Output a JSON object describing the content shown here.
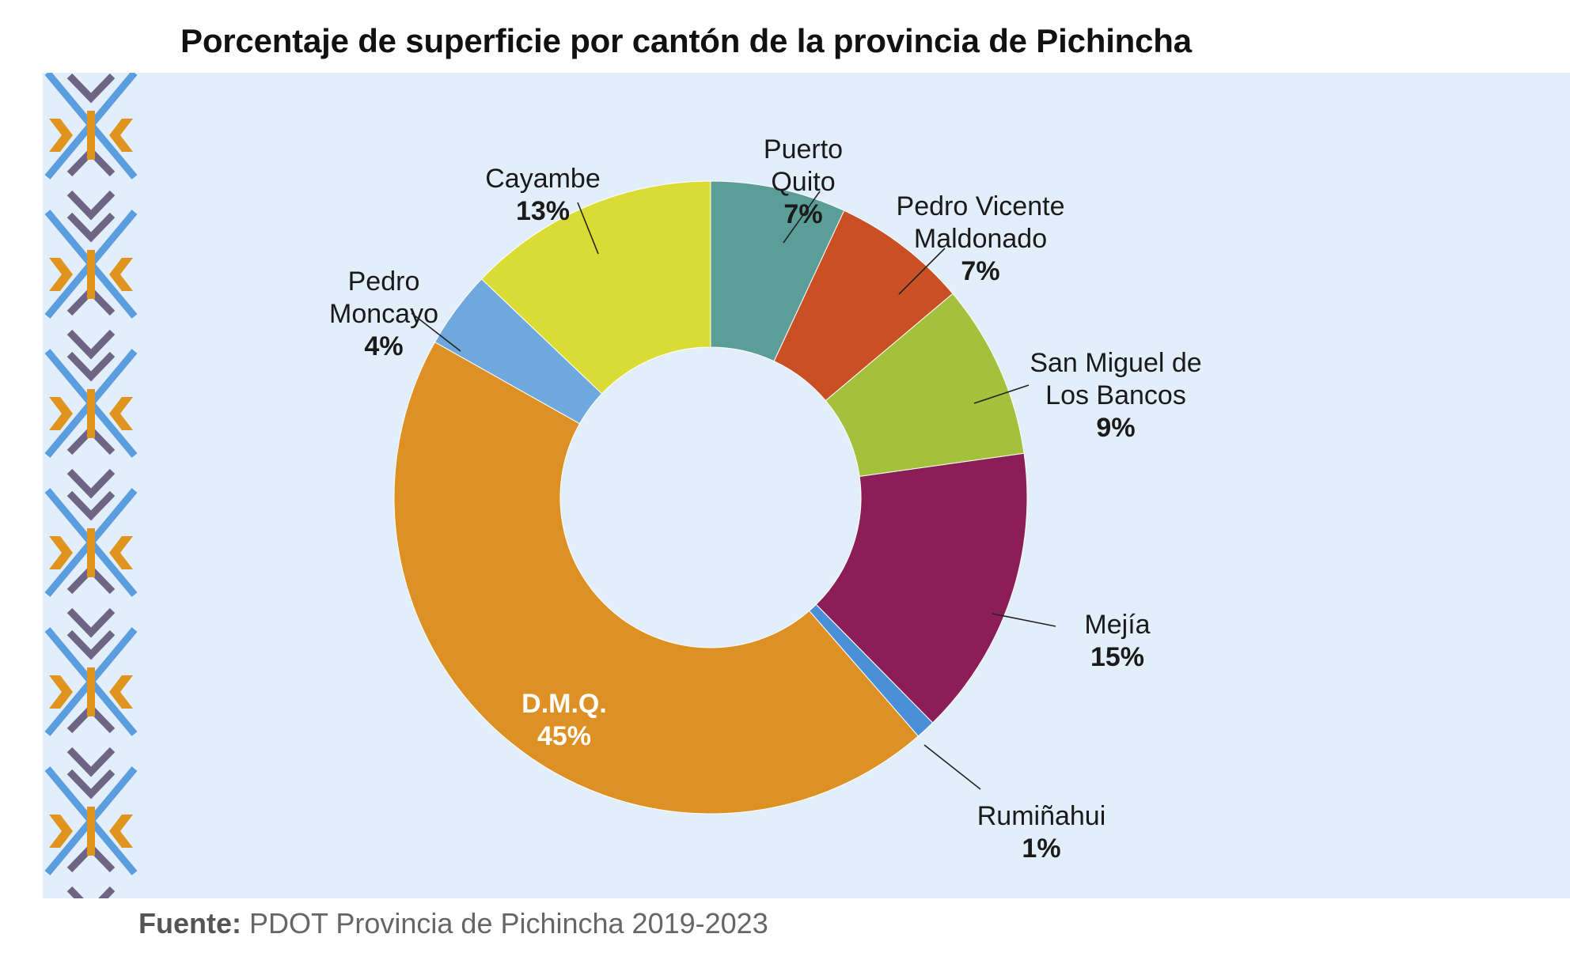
{
  "chart_data": {
    "type": "pie",
    "donut": true,
    "title": "Porcentaje de superficie por cantón de la provincia de Pichincha",
    "slices": [
      {
        "label": [
          "Puerto",
          "Quito"
        ],
        "value": 7,
        "value_label": "7%",
        "color": "#5a9e97"
      },
      {
        "label": [
          "Pedro Vicente",
          "Maldonado"
        ],
        "value": 7,
        "value_label": "7%",
        "color": "#c94f24"
      },
      {
        "label": [
          "San Miguel de",
          "Los Bancos"
        ],
        "value": 9,
        "value_label": "9%",
        "color": "#a3c13a"
      },
      {
        "label": [
          "Mejía"
        ],
        "value": 15,
        "value_label": "15%",
        "color": "#8b1e57"
      },
      {
        "label": [
          "Rumiñahui"
        ],
        "value": 1,
        "value_label": "1%",
        "color": "#4a90d9"
      },
      {
        "label": [
          "D.M.Q."
        ],
        "value": 45,
        "value_label": "45%",
        "color": "#dd9023"
      },
      {
        "label": [
          "Pedro",
          "Moncayo"
        ],
        "value": 4,
        "value_label": "4%",
        "color": "#6fa8dc"
      },
      {
        "label": [
          "Cayambe"
        ],
        "value": 13,
        "value_label": "13%",
        "color": "#dbdb35"
      }
    ]
  },
  "source": {
    "label": "Fuente:",
    "text": " PDOT Provincia de Pichincha 2019-2023"
  },
  "colors": {
    "panel_background": "#e2eef9",
    "pattern_blue": "#5b9ee0",
    "pattern_purple": "#6e6483",
    "pattern_orange": "#e0941d"
  }
}
